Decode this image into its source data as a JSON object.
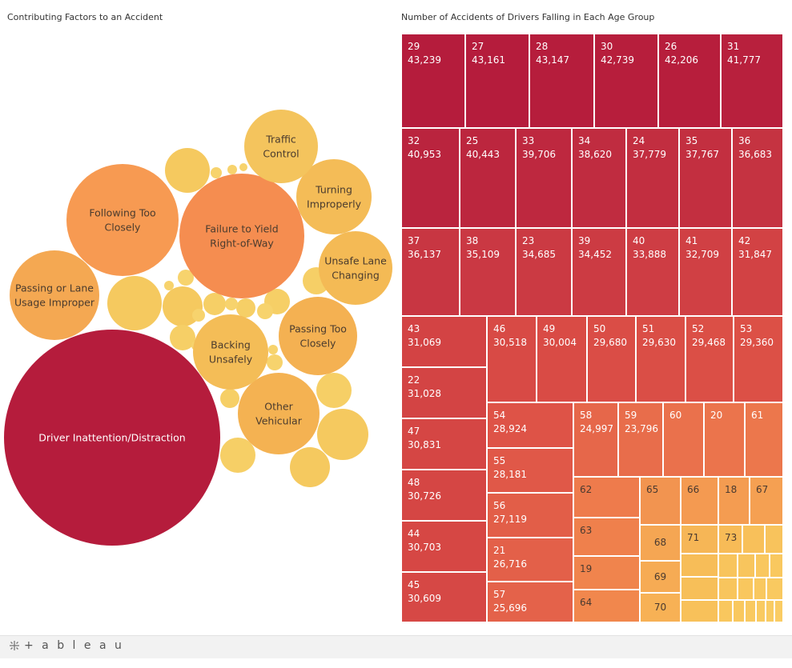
{
  "charts": {
    "bubble_title": "Contributing Factors to an Accident",
    "treemap_title": "Number of Accidents of Drivers Falling in Each Age Group"
  },
  "chart_data": [
    {
      "type": "bubble",
      "title": "Contributing Factors to an Accident",
      "labels": [
        "Driver Inattention/Distraction",
        "Failure to Yield Right-of-Way",
        "Following Too Closely",
        "Passing or Lane Usage Improper",
        "Passing Too Closely",
        "Other Vehicular",
        "Unsafe Lane Changing",
        "Turning Improperly",
        "Backing Unsafely",
        "Traffic Control"
      ],
      "relative_size": [
        100,
        31,
        26,
        17,
        13,
        14,
        11,
        12,
        11,
        12
      ],
      "unlabeled_bubble_count": 27,
      "color_scale": [
        "#f5d06b",
        "#f2a552",
        "#f59050",
        "#b51c3c"
      ]
    },
    {
      "type": "treemap",
      "title": "Number of Accidents of Drivers Falling in Each Age Group",
      "age_groups": [
        {
          "age": "29",
          "count": 43239
        },
        {
          "age": "27",
          "count": 43161
        },
        {
          "age": "28",
          "count": 43147
        },
        {
          "age": "30",
          "count": 42739
        },
        {
          "age": "26",
          "count": 42206
        },
        {
          "age": "31",
          "count": 41777
        },
        {
          "age": "32",
          "count": 40953
        },
        {
          "age": "25",
          "count": 40443
        },
        {
          "age": "33",
          "count": 39706
        },
        {
          "age": "34",
          "count": 38620
        },
        {
          "age": "24",
          "count": 37779
        },
        {
          "age": "35",
          "count": 37767
        },
        {
          "age": "36",
          "count": 36683
        },
        {
          "age": "37",
          "count": 36137
        },
        {
          "age": "38",
          "count": 35109
        },
        {
          "age": "23",
          "count": 34685
        },
        {
          "age": "39",
          "count": 34452
        },
        {
          "age": "40",
          "count": 33888
        },
        {
          "age": "41",
          "count": 32709
        },
        {
          "age": "42",
          "count": 31847
        },
        {
          "age": "43",
          "count": 31069
        },
        {
          "age": "46",
          "count": 30518
        },
        {
          "age": "49",
          "count": 30004
        },
        {
          "age": "50",
          "count": 29680
        },
        {
          "age": "51",
          "count": 29630
        },
        {
          "age": "52",
          "count": 29468
        },
        {
          "age": "53",
          "count": 29360
        },
        {
          "age": "22",
          "count": 31028
        },
        {
          "age": "47",
          "count": 30831
        },
        {
          "age": "48",
          "count": 30726
        },
        {
          "age": "44",
          "count": 30703
        },
        {
          "age": "45",
          "count": 30609
        },
        {
          "age": "54",
          "count": 28924
        },
        {
          "age": "55",
          "count": 28181
        },
        {
          "age": "56",
          "count": 27119
        },
        {
          "age": "21",
          "count": 26716
        },
        {
          "age": "57",
          "count": 25696
        },
        {
          "age": "58",
          "count": 24997
        },
        {
          "age": "59",
          "count": 23796
        },
        {
          "age": "60",
          "count": null
        },
        {
          "age": "20",
          "count": null
        },
        {
          "age": "61",
          "count": null
        },
        {
          "age": "62",
          "count": null
        },
        {
          "age": "63",
          "count": null
        },
        {
          "age": "19",
          "count": null
        },
        {
          "age": "64",
          "count": null
        },
        {
          "age": "65",
          "count": null
        },
        {
          "age": "66",
          "count": null
        },
        {
          "age": "18",
          "count": null
        },
        {
          "age": "67",
          "count": null
        },
        {
          "age": "68",
          "count": null
        },
        {
          "age": "69",
          "count": null
        },
        {
          "age": "70",
          "count": null
        },
        {
          "age": "71",
          "count": null
        },
        {
          "age": "73",
          "count": null
        }
      ],
      "color_scale": [
        "#f7c55f",
        "#ee7a48",
        "#d94545",
        "#b51c3c"
      ]
    }
  ],
  "footer": {
    "logo_text": "+ a b l e a u"
  }
}
